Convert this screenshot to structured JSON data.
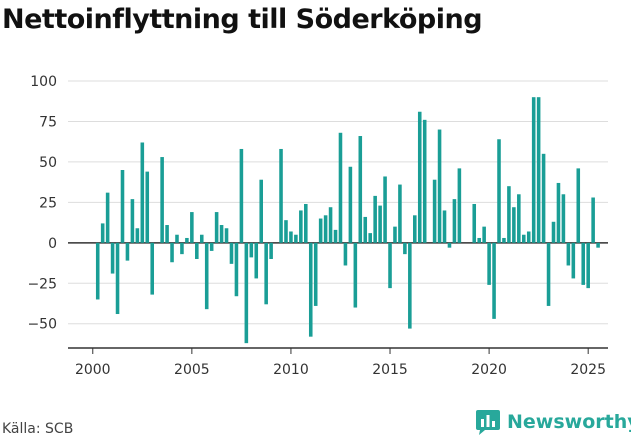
{
  "title": "Nettoinflyttning till Söderköping",
  "source": "Källa: SCB",
  "brand": {
    "name": "Newsworthy",
    "icon": "bar-chart-logo-icon",
    "color": "#28a89b"
  },
  "colors": {
    "bar": "#1a9e96",
    "grid": "#dddddd",
    "axis": "#333333"
  },
  "chart_data": {
    "type": "bar",
    "title": "Nettoinflyttning till Söderköping",
    "xlabel": "",
    "ylabel": "",
    "ylim": [
      -65,
      100
    ],
    "xlim": [
      1998.75,
      2026.0
    ],
    "yticks": [
      100,
      75,
      50,
      25,
      0,
      -25,
      -50
    ],
    "xticks": [
      2000,
      2005,
      2010,
      2015,
      2020,
      2025
    ],
    "grid": true,
    "x": [
      2000.25,
      2000.5,
      2000.75,
      2001.0,
      2001.25,
      2001.5,
      2001.75,
      2002.0,
      2002.25,
      2002.5,
      2002.75,
      2003.0,
      2003.25,
      2003.5,
      2003.75,
      2004.0,
      2004.25,
      2004.5,
      2004.75,
      2005.0,
      2005.25,
      2005.5,
      2005.75,
      2006.0,
      2006.25,
      2006.5,
      2006.75,
      2007.0,
      2007.25,
      2007.5,
      2007.75,
      2008.0,
      2008.25,
      2008.5,
      2008.75,
      2009.0,
      2009.25,
      2009.5,
      2009.75,
      2010.0,
      2010.25,
      2010.5,
      2010.75,
      2011.0,
      2011.25,
      2011.5,
      2011.75,
      2012.0,
      2012.25,
      2012.5,
      2012.75,
      2013.0,
      2013.25,
      2013.5,
      2013.75,
      2014.0,
      2014.25,
      2014.5,
      2014.75,
      2015.0,
      2015.25,
      2015.5,
      2015.75,
      2016.0,
      2016.25,
      2016.5,
      2016.75,
      2017.0,
      2017.25,
      2017.5,
      2017.75,
      2018.0,
      2018.25,
      2018.5,
      2018.75,
      2019.0,
      2019.25,
      2019.5,
      2019.75,
      2020.0,
      2020.25,
      2020.5,
      2020.75,
      2021.0,
      2021.25,
      2021.5,
      2021.75,
      2022.0,
      2022.25,
      2022.5,
      2022.75,
      2023.0,
      2023.25,
      2023.5,
      2023.75,
      2024.0,
      2024.25,
      2024.5,
      2024.75,
      2025.0,
      2025.25,
      2025.5
    ],
    "values": [
      -35,
      12,
      31,
      -19,
      -44,
      45,
      -11,
      27,
      9,
      62,
      44,
      -32,
      0,
      53,
      11,
      -12,
      5,
      -7,
      3,
      19,
      -10,
      5,
      -41,
      -5,
      19,
      11,
      9,
      -13,
      -33,
      58,
      -62,
      -9,
      -22,
      39,
      -38,
      -10,
      0,
      58,
      14,
      7,
      5,
      20,
      24,
      -58,
      -39,
      15,
      17,
      22,
      8,
      68,
      -14,
      47,
      -40,
      66,
      16,
      6,
      29,
      23,
      41,
      -28,
      10,
      36,
      -7,
      -53,
      17,
      81,
      76,
      0,
      39,
      70,
      20,
      -3,
      27,
      46,
      0,
      0,
      24,
      3,
      10,
      -26,
      -47,
      64,
      3,
      35,
      22,
      30,
      5,
      7,
      90,
      90,
      55,
      -39,
      13,
      37,
      30,
      -14,
      -22,
      46,
      -26,
      -28,
      28,
      -3
    ]
  }
}
